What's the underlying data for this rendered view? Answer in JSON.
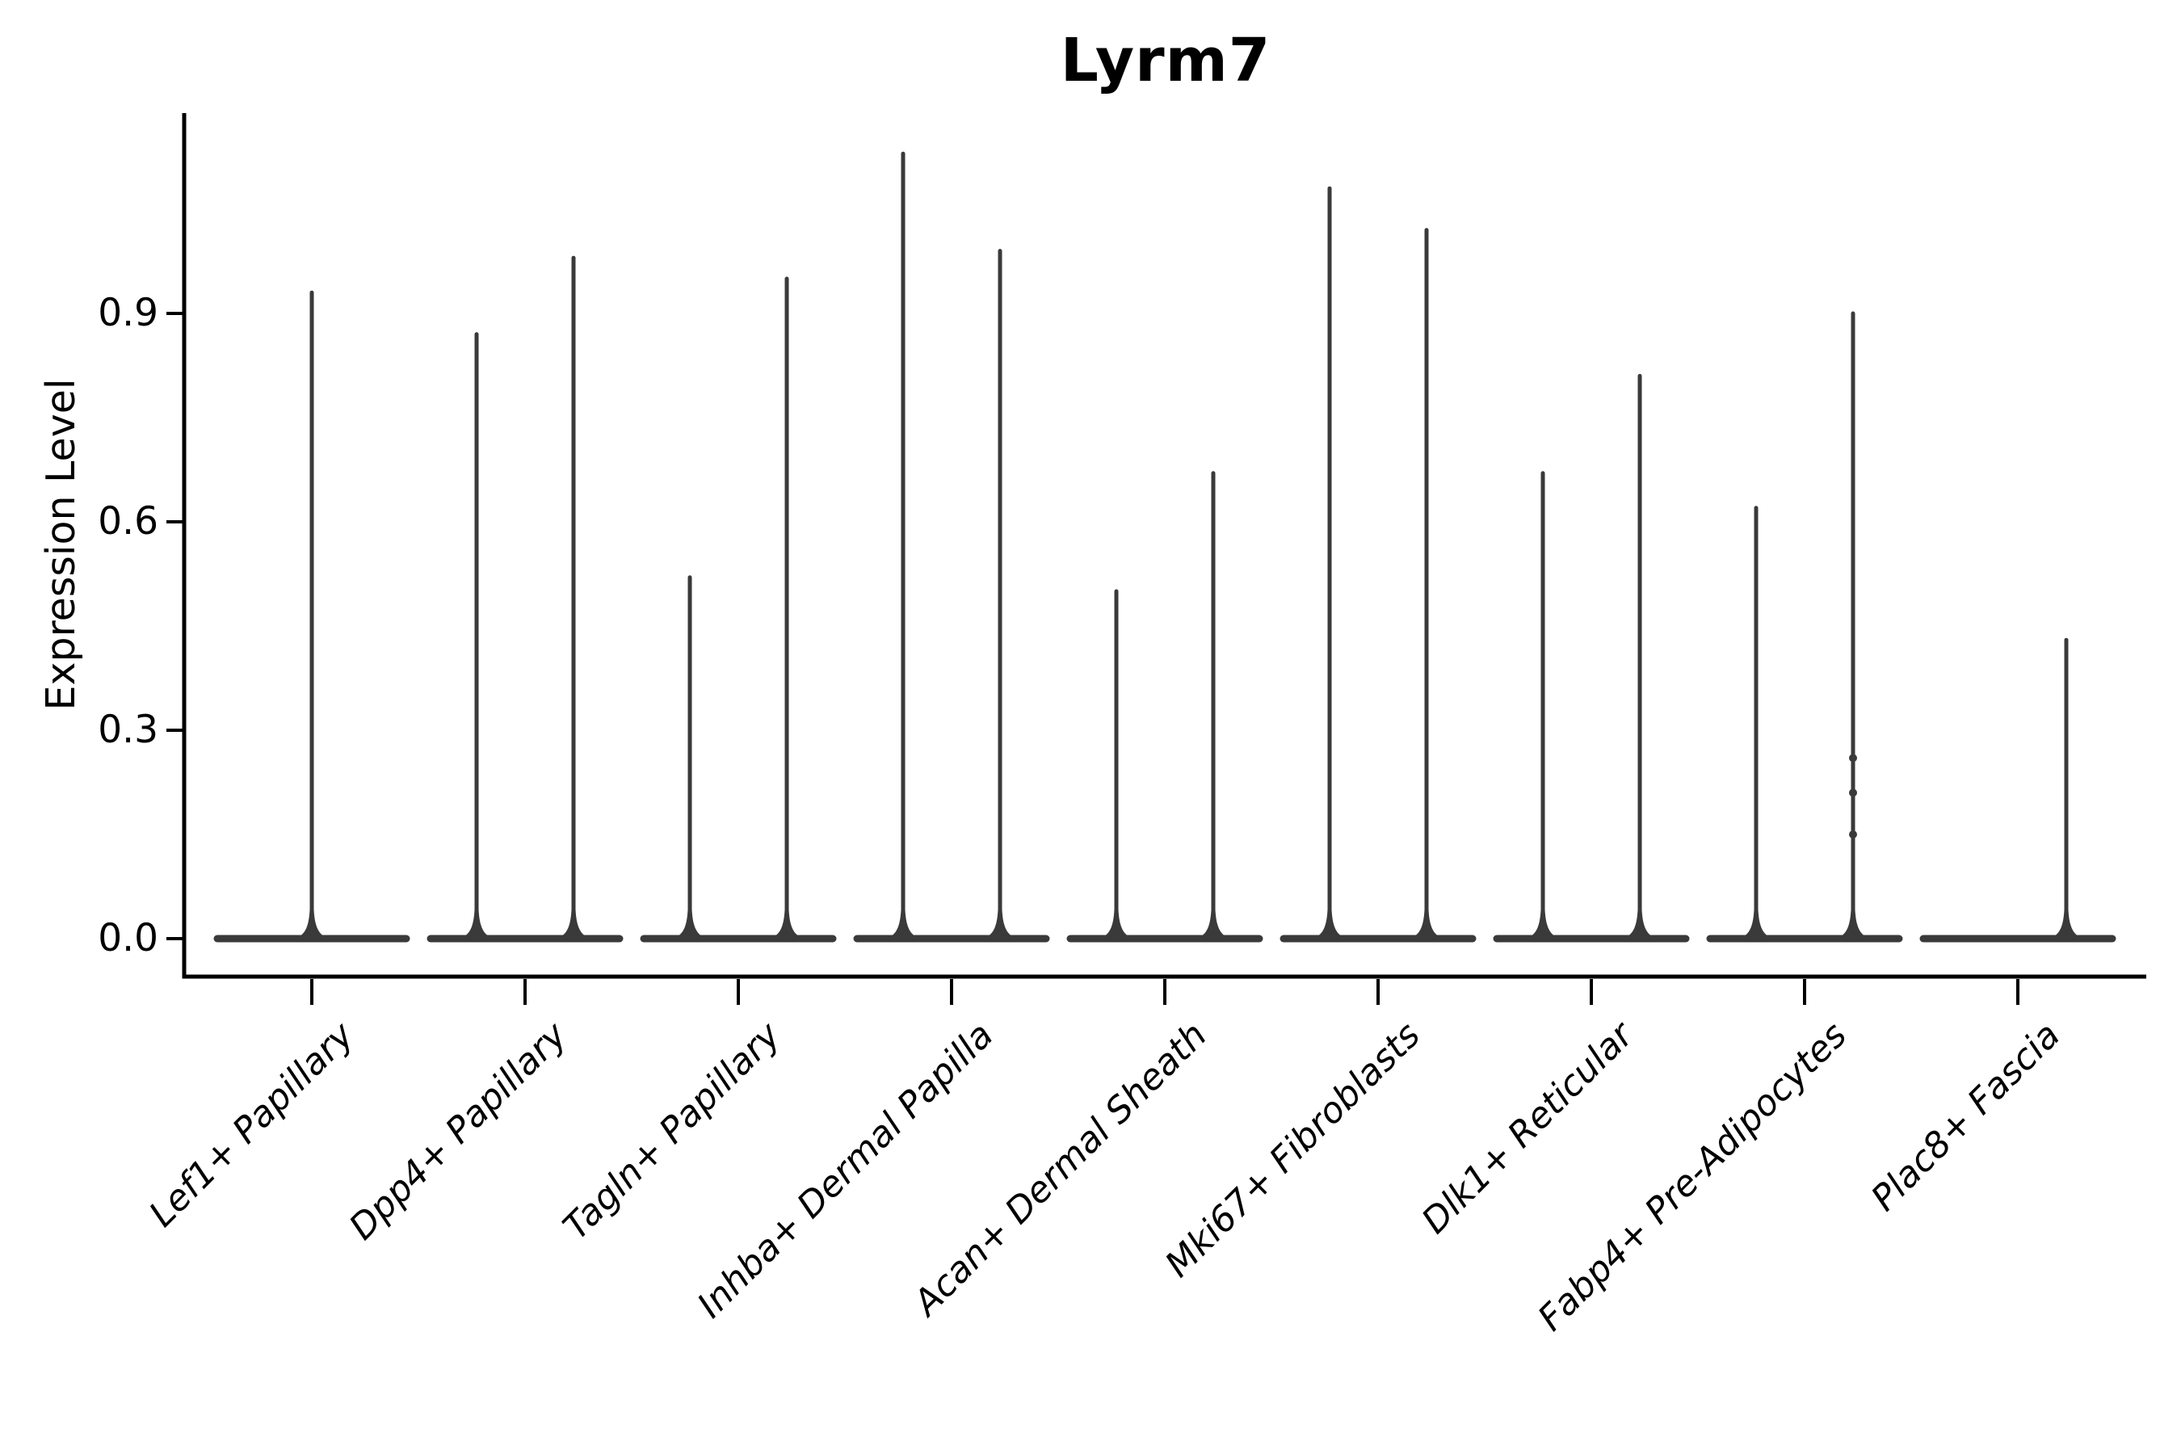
{
  "chart_data": {
    "type": "violin",
    "title": "Lyrm7",
    "ylabel": "Expression Level",
    "xlabel": "",
    "ylim": [
      0,
      1.19
    ],
    "yticks": [
      0.0,
      0.3,
      0.6,
      0.9
    ],
    "ytick_labels": [
      "0.0",
      "0.3",
      "0.6",
      "0.9"
    ],
    "grid": false,
    "legend": null,
    "colors": {
      "violin": "#3a3a3a",
      "axis": "#000000",
      "text": "#000000"
    },
    "violins": [
      {
        "category": "Lef1+ Papillary",
        "spikes": [
          {
            "pos": "center",
            "max": 0.93
          }
        ]
      },
      {
        "category": "Dpp4+ Papillary",
        "spikes": [
          {
            "pos": "left",
            "max": 0.87
          },
          {
            "pos": "right",
            "max": 0.98
          }
        ]
      },
      {
        "category": "Tagln+ Papillary",
        "spikes": [
          {
            "pos": "left",
            "max": 0.52
          },
          {
            "pos": "right",
            "max": 0.95
          }
        ]
      },
      {
        "category": "Inhba+ Dermal Papilla",
        "spikes": [
          {
            "pos": "left",
            "max": 1.13
          },
          {
            "pos": "right",
            "max": 0.99
          }
        ]
      },
      {
        "category": "Acan+ Dermal Sheath",
        "spikes": [
          {
            "pos": "left",
            "max": 0.5
          },
          {
            "pos": "right",
            "max": 0.67
          }
        ]
      },
      {
        "category": "Mki67+ Fibroblasts",
        "spikes": [
          {
            "pos": "left",
            "max": 1.08
          },
          {
            "pos": "right",
            "max": 1.02
          }
        ]
      },
      {
        "category": "Dlk1+ Reticular",
        "spikes": [
          {
            "pos": "left",
            "max": 0.67
          },
          {
            "pos": "right",
            "max": 0.81
          }
        ]
      },
      {
        "category": "Fabp4+ Pre-Adipocytes",
        "spikes": [
          {
            "pos": "left",
            "max": 0.62
          },
          {
            "pos": "right",
            "max": 0.9,
            "dots": [
              0.26,
              0.21,
              0.15
            ]
          }
        ]
      },
      {
        "category": "Plac8+ Fascia",
        "spikes": [
          {
            "pos": "right",
            "max": 0.43
          }
        ]
      }
    ]
  }
}
